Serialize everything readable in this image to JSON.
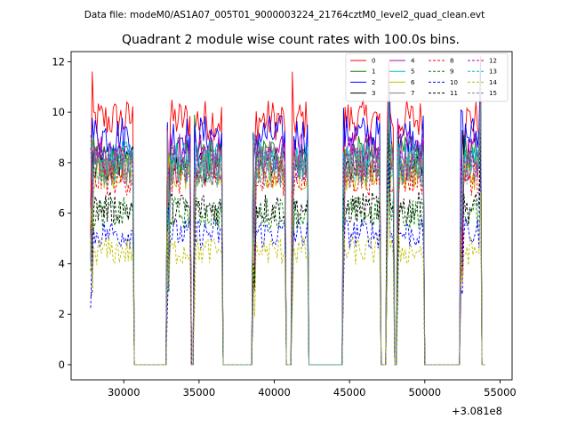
{
  "chart_data": {
    "type": "line",
    "suptitle": "Data file: modeM0/AS1A07_005T01_9000003224_21764cztM0_level2_quad_clean.evt",
    "title": "Quadrant 2 module wise count rates with 100.0s bins.",
    "xlabel": "",
    "ylabel": "",
    "x_offset_label": "+3.081e8",
    "xlim": [
      26500,
      55800
    ],
    "ylim": [
      -0.6,
      12.4
    ],
    "xticks": [
      30000,
      35000,
      40000,
      45000,
      50000,
      55000
    ],
    "yticks": [
      0,
      2,
      4,
      6,
      8,
      10,
      12
    ],
    "xtick_labels": [
      "30000",
      "35000",
      "40000",
      "45000",
      "50000",
      "55000"
    ],
    "ytick_labels": [
      "0",
      "2",
      "4",
      "6",
      "8",
      "10",
      "12"
    ],
    "legend_position": "top-right",
    "segments": [
      [
        27800,
        30600
      ],
      [
        32900,
        34450
      ],
      [
        34650,
        36500
      ],
      [
        38600,
        40700
      ],
      [
        41150,
        42250
      ],
      [
        44550,
        47000
      ],
      [
        47500,
        47950
      ],
      [
        48150,
        49950
      ],
      [
        52400,
        53700
      ]
    ],
    "series": [
      {
        "name": "0",
        "level": 9.7,
        "color": "#ff0000",
        "dash": "solid"
      },
      {
        "name": "1",
        "level": 8.3,
        "color": "#008000",
        "dash": "solid"
      },
      {
        "name": "2",
        "level": 9.1,
        "color": "#0000ff",
        "dash": "solid"
      },
      {
        "name": "3",
        "level": 7.9,
        "color": "#000000",
        "dash": "solid"
      },
      {
        "name": "4",
        "level": 8.5,
        "color": "#bf00bf",
        "dash": "solid"
      },
      {
        "name": "5",
        "level": 8.1,
        "color": "#00bfbf",
        "dash": "solid"
      },
      {
        "name": "6",
        "level": 7.6,
        "color": "#bfbf00",
        "dash": "solid"
      },
      {
        "name": "7",
        "level": 8.0,
        "color": "#808080",
        "dash": "solid"
      },
      {
        "name": "8",
        "level": 7.4,
        "color": "#ff0000",
        "dash": "dashed"
      },
      {
        "name": "9",
        "level": 6.0,
        "color": "#008000",
        "dash": "dashed"
      },
      {
        "name": "10",
        "level": 5.2,
        "color": "#0000ff",
        "dash": "dashed"
      },
      {
        "name": "11",
        "level": 6.2,
        "color": "#000000",
        "dash": "dashed"
      },
      {
        "name": "12",
        "level": 7.9,
        "color": "#bf00bf",
        "dash": "dashed"
      },
      {
        "name": "13",
        "level": 7.8,
        "color": "#00bfbf",
        "dash": "dashed"
      },
      {
        "name": "14",
        "level": 4.5,
        "color": "#bfbf00",
        "dash": "dashed"
      },
      {
        "name": "15",
        "level": 7.7,
        "color": "#808080",
        "dash": "dashed"
      }
    ]
  }
}
